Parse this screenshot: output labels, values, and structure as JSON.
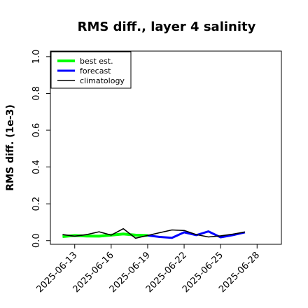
{
  "chart_data": {
    "type": "line",
    "title": "RMS diff., layer 4 salinity",
    "xlabel": "",
    "ylabel": "RMS diff. (1e-3)",
    "ylim": [
      -0.02,
      1.03
    ],
    "xlim": [
      "2025-06-11",
      "2025-06-30"
    ],
    "yticks": [
      0.0,
      0.2,
      0.4,
      0.6,
      0.8,
      1.0
    ],
    "ytick_labels": [
      "0.0",
      "0.2",
      "0.4",
      "0.6",
      "0.8",
      "1.0"
    ],
    "xticks": [
      "2025-06-13",
      "2025-06-16",
      "2025-06-19",
      "2025-06-22",
      "2025-06-25",
      "2025-06-28"
    ],
    "xtick_labels": [
      "2025-06-13",
      "2025-06-16",
      "2025-06-19",
      "2025-06-22",
      "2025-06-25",
      "2025-06-28"
    ],
    "highlight_tick": "2025-06-19",
    "highlight_color": "#228b22",
    "legend_position": "top-left",
    "grid": false,
    "series": [
      {
        "name": "best est.",
        "color": "#00ff00",
        "width": 4,
        "x": [
          "2025-06-12",
          "2025-06-13",
          "2025-06-14",
          "2025-06-15",
          "2025-06-16",
          "2025-06-17",
          "2025-06-18",
          "2025-06-19"
        ],
        "y": [
          0.022,
          0.028,
          0.025,
          0.024,
          0.03,
          0.036,
          0.03,
          0.028
        ]
      },
      {
        "name": "forecast",
        "color": "#0000ff",
        "width": 3,
        "x": [
          "2025-06-19",
          "2025-06-20",
          "2025-06-21",
          "2025-06-22",
          "2025-06-23",
          "2025-06-24",
          "2025-06-25",
          "2025-06-26",
          "2025-06-27"
        ],
        "y": [
          0.028,
          0.02,
          0.015,
          0.045,
          0.03,
          0.05,
          0.018,
          0.03,
          0.045
        ]
      },
      {
        "name": "climatology",
        "color": "#000000",
        "width": 1.6,
        "x": [
          "2025-06-12",
          "2025-06-13",
          "2025-06-14",
          "2025-06-15",
          "2025-06-16",
          "2025-06-17",
          "2025-06-18",
          "2025-06-19",
          "2025-06-20",
          "2025-06-21",
          "2025-06-22",
          "2025-06-23",
          "2025-06-24",
          "2025-06-25",
          "2025-06-26",
          "2025-06-27"
        ],
        "y": [
          0.033,
          0.024,
          0.033,
          0.048,
          0.03,
          0.065,
          0.013,
          0.028,
          0.043,
          0.058,
          0.055,
          0.033,
          0.02,
          0.026,
          0.035,
          0.047
        ]
      }
    ]
  }
}
